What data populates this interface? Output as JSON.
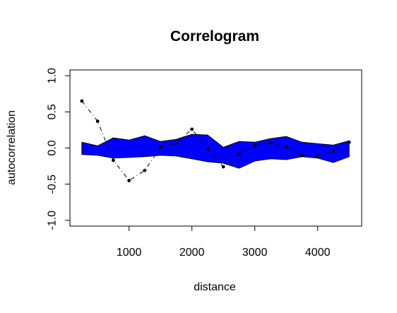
{
  "chart_data": {
    "type": "line",
    "title": "Correlogram",
    "xlabel": "distance",
    "ylabel": "autocorrelation",
    "xlim": [
      60,
      4700
    ],
    "ylim": [
      -1.08,
      1.08
    ],
    "xticks": [
      1000,
      2000,
      3000,
      4000
    ],
    "xtick_labels": [
      "1000",
      "2000",
      "3000",
      "4000"
    ],
    "yticks": [
      -1.0,
      -0.5,
      0.0,
      0.5,
      1.0
    ],
    "ytick_labels": [
      "-1.0",
      "-0.5",
      "0.0",
      "0.5",
      "1.0"
    ],
    "grid": false,
    "legend": "none",
    "envelope": {
      "color": "#0000ff",
      "x": [
        250,
        500,
        750,
        1000,
        1250,
        1500,
        1750,
        2000,
        2250,
        2500,
        2750,
        3000,
        3250,
        3500,
        3750,
        4000,
        4250,
        4500
      ],
      "upper": [
        0.08,
        0.03,
        0.14,
        0.11,
        0.17,
        0.09,
        0.12,
        0.19,
        0.18,
        0.01,
        0.09,
        0.08,
        0.13,
        0.16,
        0.08,
        0.06,
        0.04,
        0.1
      ],
      "lower": [
        -0.09,
        -0.1,
        -0.14,
        -0.13,
        -0.12,
        -0.1,
        -0.11,
        -0.15,
        -0.19,
        -0.21,
        -0.28,
        -0.18,
        -0.15,
        -0.16,
        -0.12,
        -0.14,
        -0.2,
        -0.12
      ]
    },
    "series": [
      {
        "color": "#000000",
        "x": [
          250,
          500,
          750,
          1000,
          1250,
          1500,
          1750,
          2000,
          2250,
          2500,
          2750,
          3000,
          3250,
          3500,
          3750,
          4000,
          4250,
          4500
        ],
        "values": [
          0.65,
          0.37,
          -0.17,
          -0.45,
          -0.31,
          0.01,
          0.07,
          0.26,
          -0.01,
          -0.26,
          -0.08,
          0.03,
          0.07,
          0.01,
          -0.1,
          -0.11,
          -0.04,
          0.08
        ]
      }
    ]
  }
}
